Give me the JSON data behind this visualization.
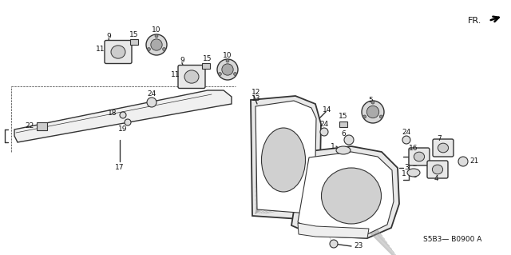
{
  "bg_color": "#ffffff",
  "line_color": "#333333",
  "text_color": "#111111",
  "font_size": 6.5,
  "diagram_code": "S5B3— B0900 A",
  "fr_label": "FR.",
  "lw": 1.0
}
